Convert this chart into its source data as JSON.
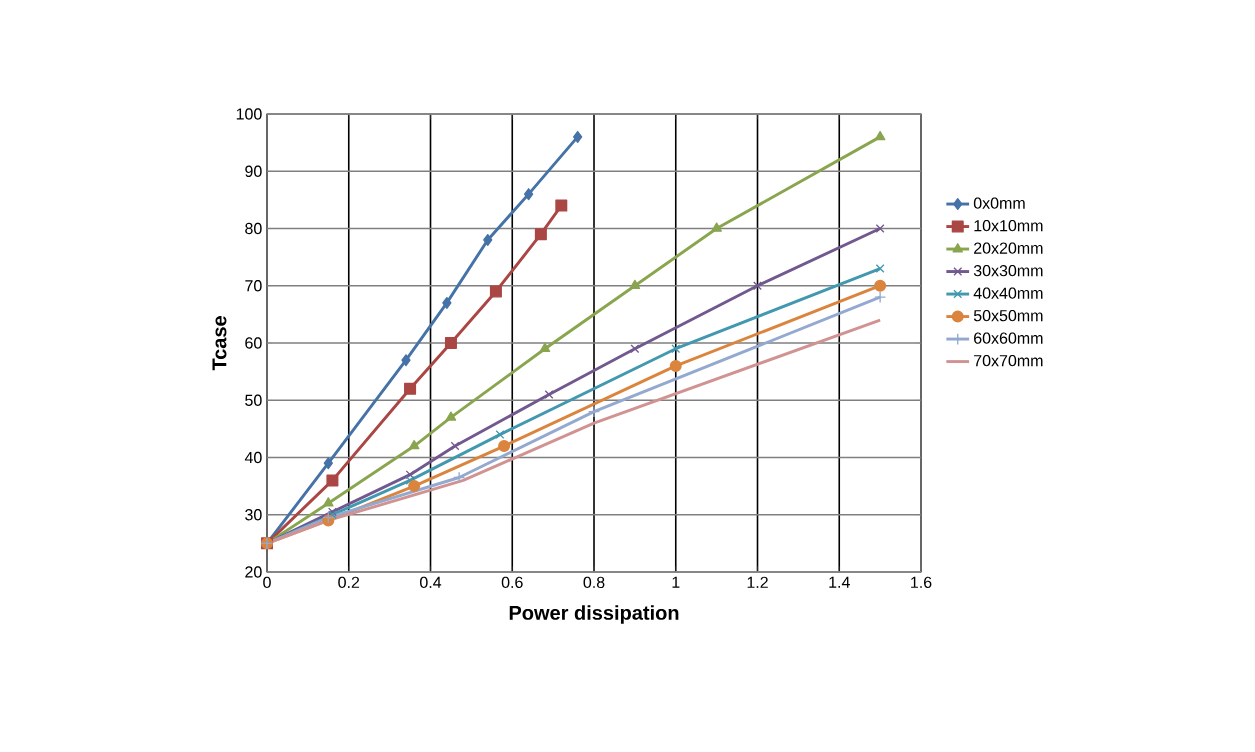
{
  "chart_data": {
    "type": "line",
    "xlabel": "Power dissipation",
    "ylabel": "Tcase",
    "xlim": [
      0,
      1.6
    ],
    "ylim": [
      20,
      100
    ],
    "xticks": [
      0,
      0.2,
      0.4,
      0.6,
      0.8,
      1,
      1.2,
      1.4,
      1.6
    ],
    "yticks": [
      20,
      30,
      40,
      50,
      60,
      70,
      80,
      90,
      100
    ],
    "grid": true,
    "legend": "right",
    "series": [
      {
        "name": "0x0mm",
        "color": "#4572a7",
        "marker": "diamond",
        "x": [
          0,
          0.15,
          0.34,
          0.44,
          0.54,
          0.64,
          0.76
        ],
        "values": [
          25,
          39,
          57,
          67,
          78,
          86,
          96
        ]
      },
      {
        "name": "10x10mm",
        "color": "#aa4643",
        "marker": "square",
        "x": [
          0,
          0.16,
          0.35,
          0.45,
          0.56,
          0.67,
          0.72
        ],
        "values": [
          25,
          36,
          52,
          60,
          69,
          79,
          84
        ]
      },
      {
        "name": "20x20mm",
        "color": "#89a54e",
        "marker": "triangle",
        "x": [
          0,
          0.15,
          0.36,
          0.45,
          0.68,
          0.9,
          1.1,
          1.5
        ],
        "values": [
          25,
          32,
          42,
          47,
          59,
          70,
          80,
          96
        ]
      },
      {
        "name": "30x30mm",
        "color": "#71588f",
        "marker": "cross",
        "x": [
          0,
          0.16,
          0.35,
          0.46,
          0.69,
          0.9,
          1.2,
          1.5
        ],
        "values": [
          25,
          30.5,
          37,
          42,
          51,
          59,
          70,
          80
        ]
      },
      {
        "name": "40x40mm",
        "color": "#4198af",
        "marker": "cross",
        "x": [
          0,
          0.16,
          0.35,
          0.57,
          1,
          1.5
        ],
        "values": [
          25,
          30,
          36,
          44,
          59,
          73
        ]
      },
      {
        "name": "50x50mm",
        "color": "#db843d",
        "marker": "circle",
        "x": [
          0,
          0.15,
          0.36,
          0.58,
          1,
          1.5
        ],
        "values": [
          25,
          29,
          35,
          42,
          56,
          70
        ]
      },
      {
        "name": "60x60mm",
        "color": "#93a9cf",
        "marker": "plus",
        "x": [
          0,
          0.15,
          0.47,
          0.8,
          1.5
        ],
        "values": [
          25,
          29.5,
          36.5,
          48,
          68
        ]
      },
      {
        "name": "70x70mm",
        "color": "#d19392",
        "marker": "none",
        "x": [
          0,
          0.15,
          0.48,
          0.8,
          1.5
        ],
        "values": [
          25,
          29,
          36,
          46,
          64
        ]
      }
    ]
  }
}
